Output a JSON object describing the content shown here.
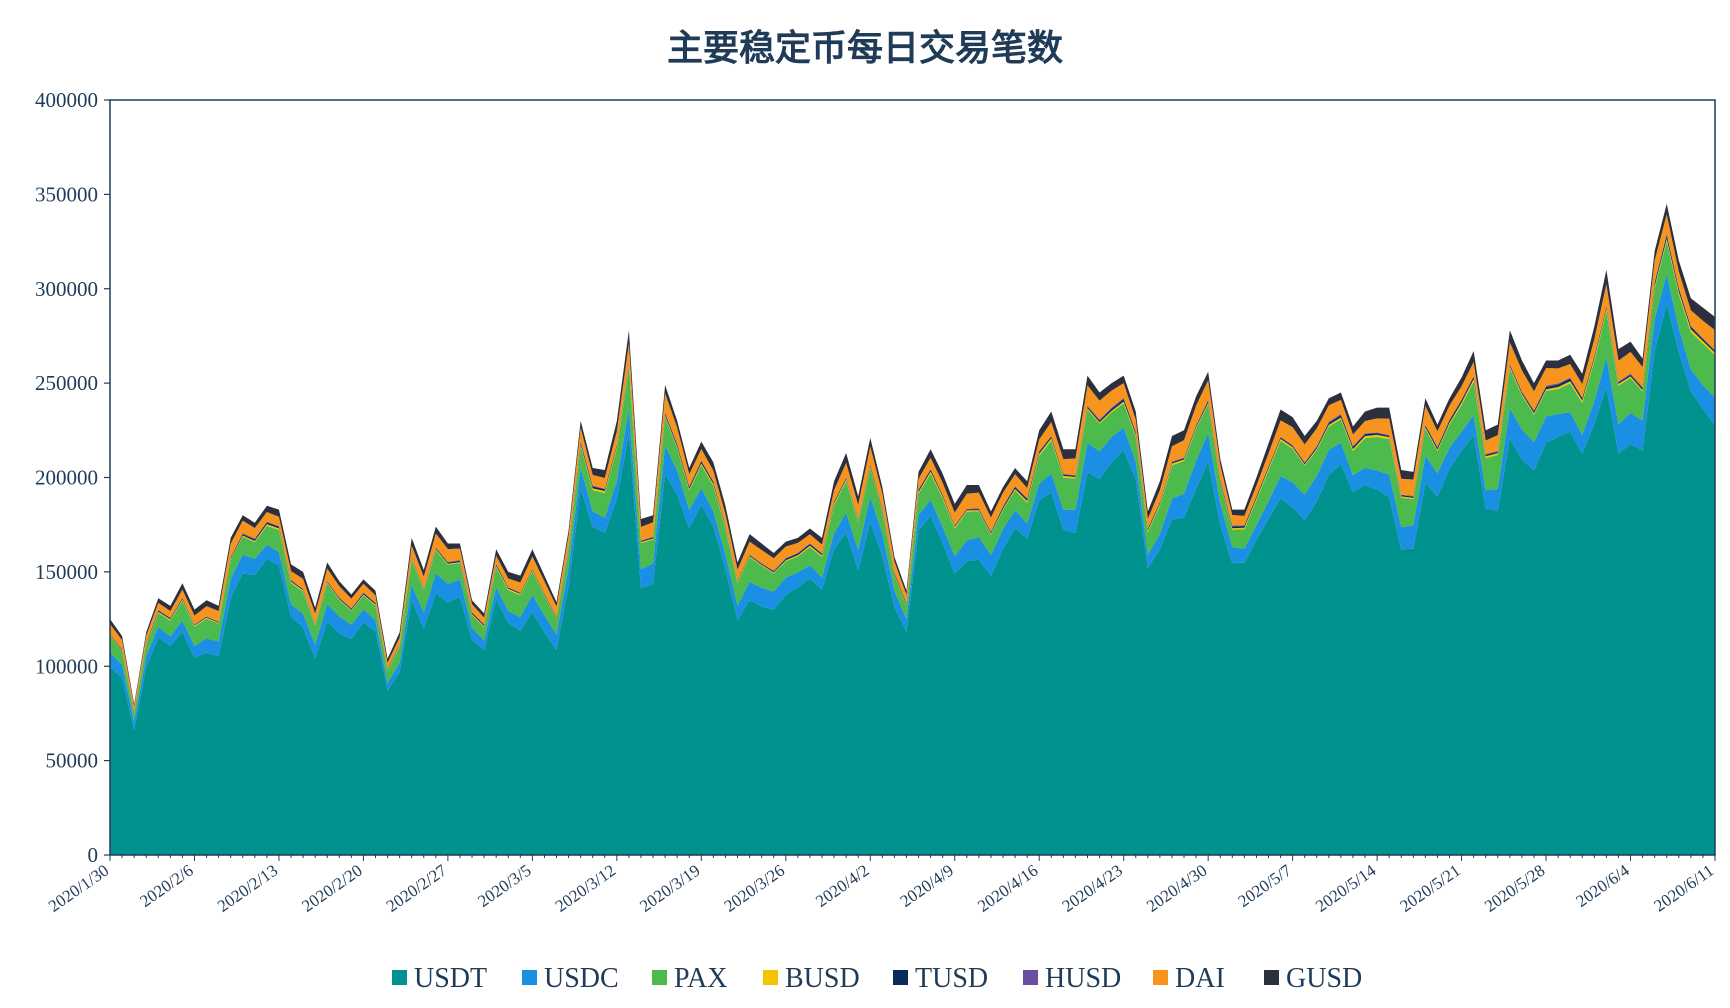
{
  "chart_data": {
    "type": "area",
    "stacked": true,
    "title": "主要稳定币每日交易笔数",
    "xlabel": "",
    "ylabel": "",
    "ylim": [
      0,
      400000
    ],
    "yticks": [
      0,
      50000,
      100000,
      150000,
      200000,
      250000,
      300000,
      350000,
      400000
    ],
    "ytick_labels": [
      "0",
      "50000",
      "100000",
      "150000",
      "200000",
      "250000",
      "300000",
      "350000",
      "400000"
    ],
    "x_start": "2020/1/30",
    "x_end": "2020/6/11",
    "xtick_labels": [
      "2020/1/30",
      "2020/2/6",
      "2020/2/13",
      "2020/2/20",
      "2020/2/27",
      "2020/3/5",
      "2020/3/12",
      "2020/3/19",
      "2020/3/26",
      "2020/4/2",
      "2020/4/9",
      "2020/4/16",
      "2020/4/23",
      "2020/4/30",
      "2020/5/7",
      "2020/5/14",
      "2020/5/21",
      "2020/5/28",
      "2020/6/4",
      "2020/6/11"
    ],
    "legend_position": "bottom",
    "grid": false,
    "totals": [
      125000,
      116000,
      80000,
      118000,
      136000,
      132000,
      144000,
      130000,
      135000,
      132000,
      168000,
      180000,
      176000,
      185000,
      183000,
      154000,
      150000,
      131000,
      155000,
      145000,
      138000,
      146000,
      140000,
      104000,
      118000,
      168000,
      151000,
      174000,
      165000,
      165000,
      135000,
      128000,
      162000,
      150000,
      148000,
      162000,
      148000,
      134000,
      172000,
      230000,
      205000,
      204000,
      230000,
      278000,
      178000,
      180000,
      249000,
      230000,
      205000,
      219000,
      208000,
      185000,
      155000,
      170000,
      165000,
      160000,
      166000,
      168000,
      173000,
      168000,
      198000,
      213000,
      190000,
      221000,
      195000,
      158000,
      140000,
      203000,
      215000,
      202000,
      186000,
      196000,
      196000,
      182000,
      195000,
      205000,
      198000,
      225000,
      235000,
      215000,
      215000,
      254000,
      245000,
      250000,
      254000,
      235000,
      182000,
      198000,
      222000,
      225000,
      243000,
      256000,
      210000,
      183000,
      183000,
      200000,
      218000,
      236000,
      232000,
      222000,
      230000,
      242000,
      245000,
      227000,
      235000,
      237000,
      237000,
      204000,
      203000,
      242000,
      228000,
      242000,
      253000,
      267000,
      225000,
      228000,
      278000,
      262000,
      250000,
      262000,
      262000,
      265000,
      255000,
      280000,
      310000,
      268000,
      272000,
      263000,
      320000,
      345000,
      315000,
      295000,
      290000,
      285000
    ],
    "series": [
      {
        "name": "USDT",
        "color": "#00928f",
        "share": 0.82
      },
      {
        "name": "USDC",
        "color": "#1a8fe3",
        "share": 0.05
      },
      {
        "name": "PAX",
        "color": "#4cba4c",
        "share": 0.065
      },
      {
        "name": "BUSD",
        "color": "#f5c400",
        "share": 0.004
      },
      {
        "name": "TUSD",
        "color": "#0b2a5c",
        "share": 0.004
      },
      {
        "name": "HUSD",
        "color": "#6a4fa0",
        "share": 0.002
      },
      {
        "name": "DAI",
        "color": "#f7941d",
        "share": 0.035
      },
      {
        "name": "GUSD",
        "color": "#2c2f3e",
        "share": 0.02
      }
    ],
    "axis_color": "#1f3b57"
  }
}
